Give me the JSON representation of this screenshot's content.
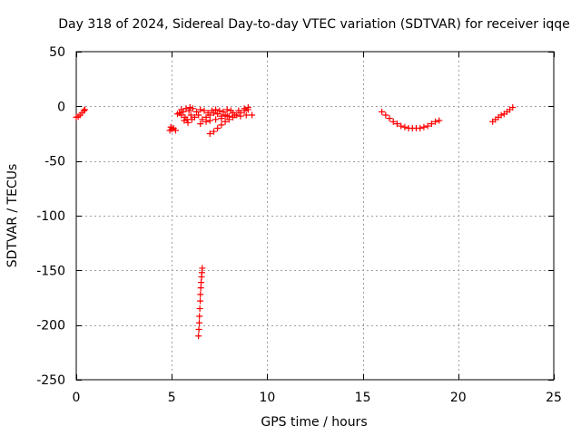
{
  "chart_data": {
    "type": "scatter",
    "title": "Day 318 of 2024, Sidereal Day-to-day VTEC variation (SDTVAR) for receiver iqqe",
    "xlabel": "GPS time / hours",
    "ylabel": "SDTVAR / TECUs",
    "xlim": [
      0,
      25
    ],
    "ylim": [
      -250,
      50
    ],
    "xticks": [
      0,
      5,
      10,
      15,
      20,
      25
    ],
    "yticks": [
      50,
      0,
      -50,
      -100,
      -150,
      -200,
      -250
    ],
    "grid": true,
    "marker": "+",
    "series_color": "#ff0000",
    "series": [
      {
        "name": "SDTVAR",
        "points": [
          [
            0.0,
            -10
          ],
          [
            0.1,
            -9.5
          ],
          [
            0.2,
            -8
          ],
          [
            0.3,
            -6
          ],
          [
            0.4,
            -4
          ],
          [
            0.45,
            -3
          ],
          [
            4.9,
            -22
          ],
          [
            5.0,
            -21
          ],
          [
            5.1,
            -20
          ],
          [
            5.2,
            -22
          ],
          [
            4.95,
            -19
          ],
          [
            5.3,
            -7
          ],
          [
            5.4,
            -6
          ],
          [
            5.5,
            -8
          ],
          [
            5.6,
            -5
          ],
          [
            5.7,
            -10
          ],
          [
            5.75,
            -2
          ],
          [
            5.8,
            -12
          ],
          [
            5.9,
            -4
          ],
          [
            6.0,
            -8
          ],
          [
            5.85,
            -15
          ],
          [
            6.05,
            -12
          ],
          [
            6.1,
            -2
          ],
          [
            5.5,
            -3
          ],
          [
            5.65,
            -13
          ],
          [
            5.95,
            -1
          ],
          [
            6.3,
            -5
          ],
          [
            6.5,
            -3
          ],
          [
            6.7,
            -4
          ],
          [
            6.9,
            -6
          ],
          [
            7.1,
            -4
          ],
          [
            7.3,
            -3
          ],
          [
            7.5,
            -4
          ],
          [
            7.7,
            -5
          ],
          [
            7.9,
            -3
          ],
          [
            8.1,
            -4
          ],
          [
            6.2,
            -10
          ],
          [
            6.4,
            -8
          ],
          [
            6.6,
            -12
          ],
          [
            6.8,
            -10
          ],
          [
            7.0,
            -8
          ],
          [
            7.2,
            -6
          ],
          [
            7.4,
            -7
          ],
          [
            7.6,
            -9
          ],
          [
            7.8,
            -8
          ],
          [
            8.0,
            -9
          ],
          [
            8.3,
            -8
          ],
          [
            8.6,
            -9
          ],
          [
            8.9,
            -8
          ],
          [
            9.2,
            -8
          ],
          [
            7.0,
            -25
          ],
          [
            7.2,
            -23
          ],
          [
            7.4,
            -20
          ],
          [
            7.6,
            -17
          ],
          [
            7.8,
            -14
          ],
          [
            8.0,
            -12
          ],
          [
            8.2,
            -10
          ],
          [
            8.4,
            -8
          ],
          [
            8.6,
            -6
          ],
          [
            8.8,
            -4
          ],
          [
            9.0,
            -3
          ],
          [
            6.5,
            -16
          ],
          [
            6.8,
            -14
          ],
          [
            7.0,
            -13
          ],
          [
            7.3,
            -12
          ],
          [
            7.6,
            -11
          ],
          [
            7.9,
            -9
          ],
          [
            8.2,
            -6
          ],
          [
            8.5,
            -4
          ],
          [
            8.8,
            -2
          ],
          [
            9.0,
            -1
          ],
          [
            6.6,
            -148
          ],
          [
            6.58,
            -152
          ],
          [
            6.56,
            -156
          ],
          [
            6.54,
            -161
          ],
          [
            6.52,
            -166
          ],
          [
            6.5,
            -172
          ],
          [
            6.49,
            -178
          ],
          [
            6.47,
            -185
          ],
          [
            6.45,
            -192
          ],
          [
            6.44,
            -198
          ],
          [
            6.42,
            -204
          ],
          [
            6.4,
            -210
          ],
          [
            16.0,
            -5
          ],
          [
            16.2,
            -8
          ],
          [
            16.4,
            -11
          ],
          [
            16.6,
            -14
          ],
          [
            16.8,
            -16
          ],
          [
            17.0,
            -18
          ],
          [
            17.2,
            -19
          ],
          [
            17.4,
            -20
          ],
          [
            17.6,
            -20
          ],
          [
            17.8,
            -20
          ],
          [
            18.0,
            -20
          ],
          [
            18.2,
            -19
          ],
          [
            18.4,
            -18
          ],
          [
            18.6,
            -16
          ],
          [
            18.8,
            -14
          ],
          [
            19.0,
            -13
          ],
          [
            21.8,
            -14
          ],
          [
            21.95,
            -12
          ],
          [
            22.1,
            -10
          ],
          [
            22.25,
            -8
          ],
          [
            22.4,
            -7
          ],
          [
            22.55,
            -5
          ],
          [
            22.7,
            -3
          ],
          [
            22.85,
            -1
          ]
        ]
      }
    ]
  }
}
